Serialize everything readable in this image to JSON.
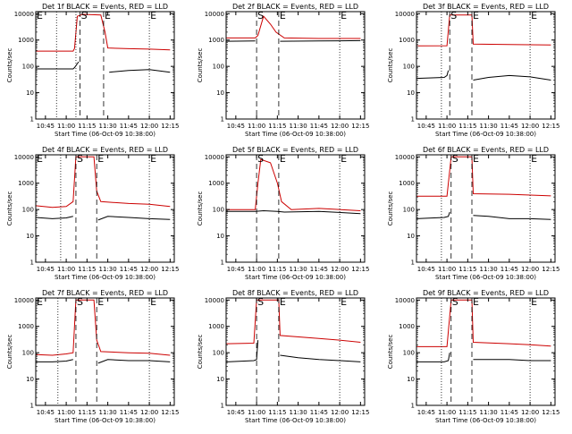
{
  "chart_data": [
    {
      "type": "line",
      "title": "Det 1f BLACK = Events, RED = LLD",
      "xlabel": "Start Time (06-Oct-09 10:38:00)",
      "ylabel": "Counts/sec",
      "y_scale": "log",
      "ylim": [
        1,
        12000
      ],
      "xlim": [
        "10:38",
        "12:18"
      ],
      "x_ticks": [
        "10:45",
        "11:00",
        "11:15",
        "11:30",
        "11:45",
        "12:00",
        "12:15"
      ],
      "y_ticks": [
        "1",
        "10",
        "100",
        "1000",
        "10000"
      ],
      "markers": [
        {
          "label": "E",
          "x": "10:38",
          "style": "dotted"
        },
        {
          "label": "S",
          "x": "11:10",
          "style": "dashed"
        },
        {
          "label": "E",
          "x": "11:27",
          "style": "dashed"
        },
        {
          "label": "E",
          "x": "12:00",
          "style": "dotted"
        }
      ],
      "extra_lines": [
        {
          "x": "10:53",
          "style": "dotted"
        },
        {
          "x": "11:07",
          "style": "dotted"
        }
      ],
      "series": [
        {
          "color": "#000000",
          "x": [
            "10:38",
            "11:05",
            "11:06",
            "11:09",
            "11:10",
            "11:30",
            "11:31",
            "11:45",
            "12:00",
            "12:15"
          ],
          "values": [
            80,
            80,
            90,
            150,
            null,
            null,
            60,
            70,
            75,
            60
          ]
        },
        {
          "color": "#cc0000",
          "x": [
            "10:38",
            "11:05",
            "11:06",
            "11:08",
            "11:12",
            "11:25",
            "11:28",
            "11:30",
            "11:45",
            "12:00",
            "12:15"
          ],
          "values": [
            380,
            380,
            480,
            8000,
            9500,
            9000,
            2000,
            500,
            470,
            450,
            420
          ]
        }
      ]
    },
    {
      "type": "line",
      "title": "Det 2f BLACK = Events, RED = LLD",
      "xlabel": "Start Time (06-Oct-09 10:38:00)",
      "ylabel": "Counts/sec",
      "y_scale": "log",
      "ylim": [
        1,
        12000
      ],
      "xlim": [
        "10:38",
        "12:18"
      ],
      "x_ticks": [
        "10:45",
        "11:00",
        "11:15",
        "11:30",
        "11:45",
        "12:00",
        "12:15"
      ],
      "y_ticks": [
        "1",
        "10",
        "100",
        "1000",
        "10000"
      ],
      "markers": [
        {
          "label": "S",
          "x": "11:00",
          "style": "dashed"
        },
        {
          "label": "E",
          "x": "11:16",
          "style": "dashed"
        },
        {
          "label": "E",
          "x": "12:00",
          "style": "dotted"
        }
      ],
      "extra_lines": [],
      "series": [
        {
          "color": "#000000",
          "x": [
            "10:38",
            "10:59",
            "11:16",
            "11:17",
            "11:45",
            "12:15"
          ],
          "values": [
            900,
            920,
            null,
            900,
            920,
            950
          ]
        },
        {
          "color": "#cc0000",
          "x": [
            "10:38",
            "10:59",
            "11:01",
            "11:05",
            "11:10",
            "11:14",
            "11:20",
            "11:45",
            "12:15"
          ],
          "values": [
            1200,
            1200,
            1500,
            8000,
            4000,
            2000,
            1200,
            1150,
            1150
          ]
        }
      ]
    },
    {
      "type": "line",
      "title": "Det 3f BLACK = Events, RED = LLD",
      "xlabel": "Start Time (06-Oct-09 10:38:00)",
      "ylabel": "Counts/sec",
      "y_scale": "log",
      "ylim": [
        1,
        12000
      ],
      "xlim": [
        "10:38",
        "12:18"
      ],
      "x_ticks": [
        "10:45",
        "11:00",
        "11:15",
        "11:30",
        "11:45",
        "12:00",
        "12:15"
      ],
      "y_ticks": [
        "1",
        "10",
        "100",
        "1000",
        "10000"
      ],
      "markers": [
        {
          "label": "S",
          "x": "11:02",
          "style": "dashed"
        },
        {
          "label": "E",
          "x": "11:18",
          "style": "dashed"
        },
        {
          "label": "E",
          "x": "12:00",
          "style": "dotted"
        }
      ],
      "extra_lines": [
        {
          "x": "10:38",
          "style": "dotted"
        },
        {
          "x": "10:56",
          "style": "dotted"
        }
      ],
      "series": [
        {
          "color": "#000000",
          "x": [
            "10:38",
            "10:58",
            "11:00",
            "11:01",
            "11:18",
            "11:19",
            "11:30",
            "11:45",
            "12:00",
            "12:15"
          ],
          "values": [
            35,
            38,
            45,
            70,
            null,
            30,
            38,
            45,
            40,
            30
          ]
        },
        {
          "color": "#cc0000",
          "x": [
            "10:38",
            "11:00",
            "11:02",
            "11:18",
            "11:19",
            "11:45",
            "12:15"
          ],
          "values": [
            600,
            610,
            9000,
            9000,
            700,
            680,
            650
          ]
        }
      ]
    },
    {
      "type": "line",
      "title": "Det 4f BLACK = Events, RED = LLD",
      "xlabel": "Start Time (06-Oct-09 10:38:00)",
      "ylabel": "Counts/sec",
      "y_scale": "log",
      "ylim": [
        1,
        12000
      ],
      "xlim": [
        "10:38",
        "12:18"
      ],
      "x_ticks": [
        "10:45",
        "11:00",
        "11:15",
        "11:30",
        "11:45",
        "12:00",
        "12:15"
      ],
      "y_ticks": [
        "1",
        "10",
        "100",
        "1000",
        "10000"
      ],
      "markers": [
        {
          "label": "E",
          "x": "10:38",
          "style": "dotted"
        },
        {
          "label": "S",
          "x": "11:07",
          "style": "dashed"
        },
        {
          "label": "E",
          "x": "11:22",
          "style": "dashed"
        },
        {
          "label": "E",
          "x": "12:00",
          "style": "dotted"
        }
      ],
      "extra_lines": [
        {
          "x": "10:56",
          "style": "dotted"
        }
      ],
      "series": [
        {
          "color": "#000000",
          "x": [
            "10:38",
            "10:50",
            "11:00",
            "11:05",
            "11:06",
            "11:22",
            "11:23",
            "11:30",
            "11:45",
            "12:00",
            "12:15"
          ],
          "values": [
            50,
            45,
            48,
            55,
            null,
            null,
            40,
            55,
            50,
            45,
            42
          ]
        },
        {
          "color": "#cc0000",
          "x": [
            "10:38",
            "10:50",
            "11:00",
            "11:05",
            "11:07",
            "11:20",
            "11:22",
            "11:25",
            "11:45",
            "12:00",
            "12:15"
          ],
          "values": [
            140,
            120,
            130,
            200,
            10000,
            10000,
            500,
            200,
            170,
            160,
            130
          ]
        }
      ]
    },
    {
      "type": "line",
      "title": "Det 5f BLACK = Events, RED = LLD",
      "xlabel": "Start Time (06-Oct-09 10:38:00)",
      "ylabel": "Counts/sec",
      "y_scale": "log",
      "ylim": [
        1,
        12000
      ],
      "xlim": [
        "10:38",
        "12:18"
      ],
      "x_ticks": [
        "10:45",
        "11:00",
        "11:15",
        "11:30",
        "11:45",
        "12:00",
        "12:15"
      ],
      "y_ticks": [
        "1",
        "10",
        "100",
        "1000",
        "10000"
      ],
      "markers": [
        {
          "label": "S",
          "x": "11:00",
          "style": "dashed"
        },
        {
          "label": "E",
          "x": "11:16",
          "style": "dashed"
        },
        {
          "label": "E",
          "x": "12:00",
          "style": "dotted"
        }
      ],
      "extra_lines": [],
      "series": [
        {
          "color": "#000000",
          "x": [
            "10:38",
            "10:59",
            "11:05",
            "11:15",
            "11:20",
            "11:45",
            "12:15"
          ],
          "values": [
            85,
            85,
            90,
            85,
            80,
            85,
            70
          ]
        },
        {
          "color": "#cc0000",
          "x": [
            "10:38",
            "10:59",
            "11:01",
            "11:03",
            "11:10",
            "11:15",
            "11:18",
            "11:25",
            "11:45",
            "12:15"
          ],
          "values": [
            100,
            100,
            1000,
            8000,
            6000,
            1000,
            200,
            100,
            110,
            90
          ]
        }
      ]
    },
    {
      "type": "line",
      "title": "Det 6f BLACK = Events, RED = LLD",
      "xlabel": "Start Time (06-Oct-09 10:38:00)",
      "ylabel": "Counts/sec",
      "y_scale": "log",
      "ylim": [
        1,
        12000
      ],
      "xlim": [
        "10:38",
        "12:18"
      ],
      "x_ticks": [
        "10:45",
        "11:00",
        "11:15",
        "11:30",
        "11:45",
        "12:00",
        "12:15"
      ],
      "y_ticks": [
        "1",
        "10",
        "100",
        "1000",
        "10000"
      ],
      "markers": [
        {
          "label": "S",
          "x": "11:03",
          "style": "dashed"
        },
        {
          "label": "E",
          "x": "11:18",
          "style": "dashed"
        },
        {
          "label": "E",
          "x": "12:00",
          "style": "dotted"
        }
      ],
      "extra_lines": [
        {
          "x": "10:38",
          "style": "dotted"
        },
        {
          "x": "10:56",
          "style": "dotted"
        }
      ],
      "series": [
        {
          "color": "#000000",
          "x": [
            "10:38",
            "10:58",
            "11:01",
            "11:02",
            "11:18",
            "11:19",
            "11:30",
            "11:45",
            "12:00",
            "12:15"
          ],
          "values": [
            45,
            50,
            55,
            80,
            null,
            60,
            55,
            45,
            45,
            42
          ]
        },
        {
          "color": "#cc0000",
          "x": [
            "10:38",
            "11:00",
            "11:03",
            "11:18",
            "11:19",
            "11:45",
            "12:15"
          ],
          "values": [
            320,
            320,
            10000,
            10000,
            400,
            380,
            330
          ]
        }
      ]
    },
    {
      "type": "line",
      "title": "Det 7f BLACK = Events, RED = LLD",
      "xlabel": "Start Time (06-Oct-09 10:38:00)",
      "ylabel": "Counts/sec",
      "y_scale": "log",
      "ylim": [
        1,
        12000
      ],
      "xlim": [
        "10:38",
        "12:18"
      ],
      "x_ticks": [
        "10:45",
        "11:00",
        "11:15",
        "11:30",
        "11:45",
        "12:00",
        "12:15"
      ],
      "y_ticks": [
        "1",
        "10",
        "100",
        "1000",
        "10000"
      ],
      "markers": [
        {
          "label": "E",
          "x": "10:38",
          "style": "dotted"
        },
        {
          "label": "S",
          "x": "11:07",
          "style": "dashed"
        },
        {
          "label": "E",
          "x": "11:22",
          "style": "dashed"
        },
        {
          "label": "E",
          "x": "12:00",
          "style": "dotted"
        }
      ],
      "extra_lines": [
        {
          "x": "10:54",
          "style": "dotted"
        }
      ],
      "series": [
        {
          "color": "#000000",
          "x": [
            "10:38",
            "10:50",
            "11:00",
            "11:05",
            "11:06",
            "11:22",
            "11:23",
            "11:30",
            "11:45",
            "12:00",
            "12:15"
          ],
          "values": [
            45,
            45,
            48,
            55,
            null,
            null,
            40,
            55,
            50,
            50,
            45
          ]
        },
        {
          "color": "#cc0000",
          "x": [
            "10:38",
            "10:50",
            "11:00",
            "11:05",
            "11:07",
            "11:20",
            "11:22",
            "11:25",
            "11:45",
            "12:00",
            "12:15"
          ],
          "values": [
            85,
            80,
            90,
            100,
            10000,
            10000,
            300,
            110,
            100,
            95,
            80
          ]
        }
      ]
    },
    {
      "type": "line",
      "title": "Det 8f BLACK = Events, RED = LLD",
      "xlabel": "Start Time (06-Oct-09 10:38:00)",
      "ylabel": "Counts/sec",
      "y_scale": "log",
      "ylim": [
        1,
        12000
      ],
      "xlim": [
        "10:38",
        "12:18"
      ],
      "x_ticks": [
        "10:45",
        "11:00",
        "11:15",
        "11:30",
        "11:45",
        "12:00",
        "12:15"
      ],
      "y_ticks": [
        "1",
        "10",
        "100",
        "1000",
        "10000"
      ],
      "markers": [
        {
          "label": "S",
          "x": "11:00",
          "style": "dashed"
        },
        {
          "label": "E",
          "x": "11:16",
          "style": "dashed"
        },
        {
          "label": "E",
          "x": "12:00",
          "style": "dotted"
        }
      ],
      "extra_lines": [],
      "series": [
        {
          "color": "#000000",
          "x": [
            "10:38",
            "10:58",
            "11:00",
            "11:01",
            "11:16",
            "11:17",
            "11:30",
            "11:45",
            "12:00",
            "12:15"
          ],
          "values": [
            45,
            50,
            55,
            300,
            null,
            80,
            65,
            55,
            50,
            45
          ]
        },
        {
          "color": "#cc0000",
          "x": [
            "10:38",
            "10:58",
            "11:00",
            "11:16",
            "11:17",
            "11:45",
            "12:00",
            "12:15"
          ],
          "values": [
            220,
            230,
            10000,
            10000,
            450,
            350,
            300,
            250
          ]
        }
      ]
    },
    {
      "type": "line",
      "title": "Det 9f BLACK = Events, RED = LLD",
      "xlabel": "Start Time (06-Oct-09 10:38:00)",
      "ylabel": "Counts/sec",
      "y_scale": "log",
      "ylim": [
        1,
        12000
      ],
      "xlim": [
        "10:38",
        "12:18"
      ],
      "x_ticks": [
        "10:45",
        "11:00",
        "11:15",
        "11:30",
        "11:45",
        "12:00",
        "12:15"
      ],
      "y_ticks": [
        "1",
        "10",
        "100",
        "1000",
        "10000"
      ],
      "markers": [
        {
          "label": "S",
          "x": "11:03",
          "style": "dashed"
        },
        {
          "label": "E",
          "x": "11:18",
          "style": "dashed"
        },
        {
          "label": "E",
          "x": "12:00",
          "style": "dotted"
        }
      ],
      "extra_lines": [
        {
          "x": "10:38",
          "style": "dotted"
        },
        {
          "x": "10:56",
          "style": "dotted"
        }
      ],
      "series": [
        {
          "color": "#000000",
          "x": [
            "10:38",
            "10:58",
            "11:01",
            "11:02",
            "11:18",
            "11:19",
            "11:30",
            "11:45",
            "12:00",
            "12:15"
          ],
          "values": [
            45,
            45,
            50,
            100,
            null,
            55,
            55,
            55,
            50,
            50
          ]
        },
        {
          "color": "#cc0000",
          "x": [
            "10:38",
            "11:00",
            "11:03",
            "11:18",
            "11:19",
            "11:45",
            "12:00",
            "12:15"
          ],
          "values": [
            170,
            170,
            10000,
            10000,
            250,
            220,
            200,
            180
          ]
        }
      ]
    }
  ]
}
